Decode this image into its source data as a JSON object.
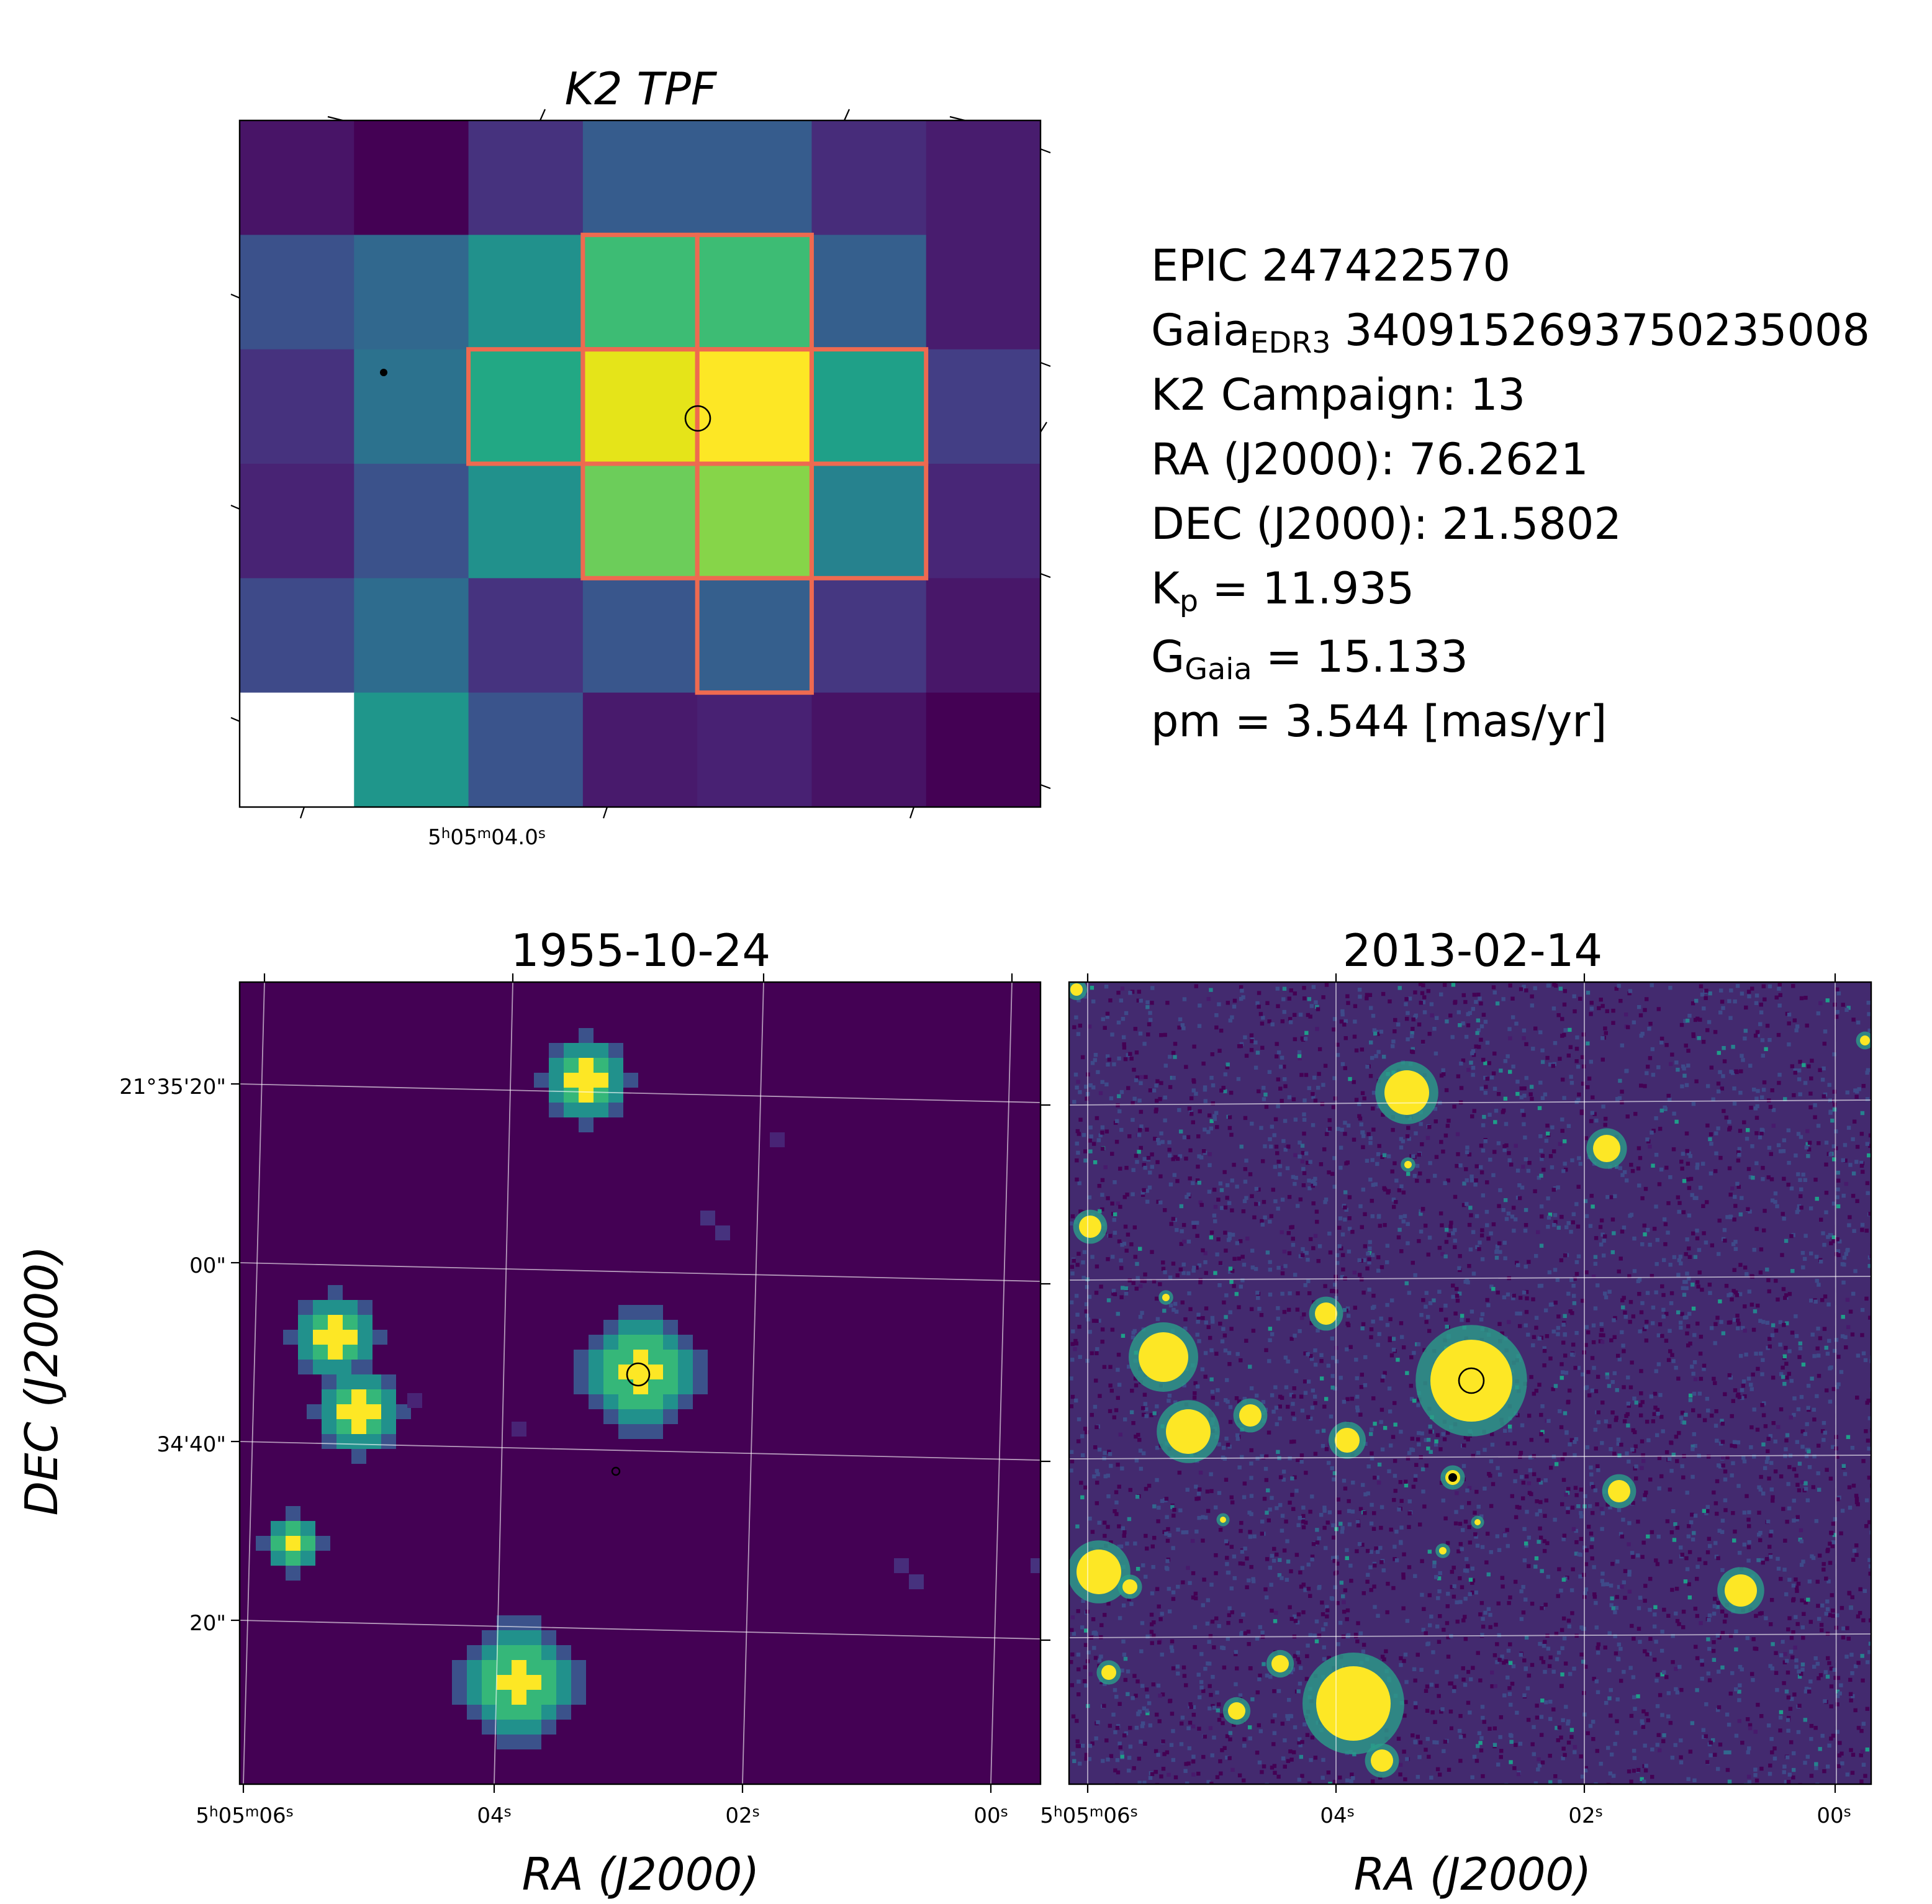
{
  "tpf": {
    "title": "K2 TPF",
    "x_tick": [
      "5",
      "h",
      "05",
      "m",
      "04.0",
      "s"
    ]
  },
  "info": {
    "lines": [
      [
        "EPIC 247422570"
      ],
      [
        "Gaia",
        "EDR3",
        " 3409152693750235008"
      ],
      [
        "K2 Campaign: 13"
      ],
      [
        "RA (J2000): 76.2621"
      ],
      [
        "DEC (J2000): 21.5802"
      ],
      [
        "K",
        "p",
        " = 11.935"
      ],
      [
        "G",
        "Gaia",
        " = 15.133"
      ],
      [
        "pm = 3.544 [mas/yr]"
      ]
    ]
  },
  "images": [
    {
      "title": "1955-10-24",
      "x_label": "RA (J2000)",
      "y_label": "DEC (J2000)",
      "x_ticks": [
        [
          "5",
          "h",
          "05",
          "m",
          "06",
          "s"
        ],
        [
          "04",
          "s"
        ],
        [
          "02",
          "s"
        ],
        [
          "00",
          "s"
        ]
      ],
      "y_ticks": [
        "21°35'20\"",
        "00\"",
        "34'40\"",
        "20\""
      ]
    },
    {
      "title": "2013-02-14",
      "x_label": "RA (J2000)",
      "x_ticks": [
        [
          "5",
          "h",
          "05",
          "m",
          "06",
          "s"
        ],
        [
          "04",
          "s"
        ],
        [
          "02",
          "s"
        ],
        [
          "00",
          "s"
        ]
      ]
    }
  ]
}
